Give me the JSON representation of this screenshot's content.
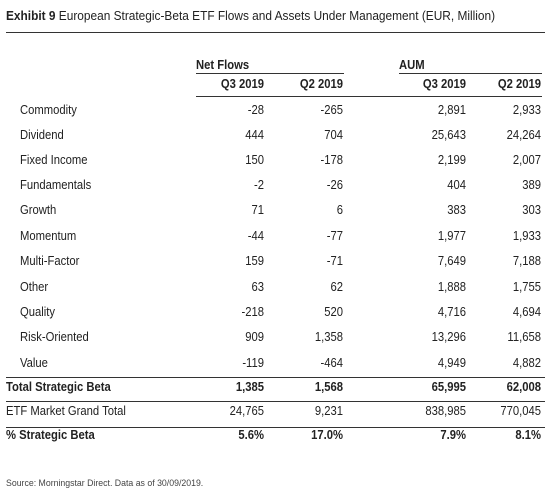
{
  "title": {
    "lead": "Exhibit 9",
    "text": "European Strategic-Beta ETF Flows and Assets Under Management (EUR, Million)"
  },
  "groups": {
    "net_flows": "Net Flows",
    "aum": "AUM"
  },
  "columns": [
    "Q3 2019",
    "Q2 2019",
    "Q3 2019",
    "Q2 2019"
  ],
  "rows": [
    {
      "label": "Commodity",
      "values": [
        "-28",
        "-265",
        "2,891",
        "2,933"
      ],
      "bold": false
    },
    {
      "label": "Dividend",
      "values": [
        "444",
        "704",
        "25,643",
        "24,264"
      ],
      "bold": false
    },
    {
      "label": "Fixed Income",
      "values": [
        "150",
        "-178",
        "2,199",
        "2,007"
      ],
      "bold": false
    },
    {
      "label": "Fundamentals",
      "values": [
        "-2",
        "-26",
        "404",
        "389"
      ],
      "bold": false
    },
    {
      "label": "Growth",
      "values": [
        "71",
        "6",
        "383",
        "303"
      ],
      "bold": false
    },
    {
      "label": "Momentum",
      "values": [
        "-44",
        "-77",
        "1,977",
        "1,933"
      ],
      "bold": false
    },
    {
      "label": "Multi-Factor",
      "values": [
        "159",
        "-71",
        "7,649",
        "7,188"
      ],
      "bold": false
    },
    {
      "label": "Other",
      "values": [
        "63",
        "62",
        "1,888",
        "1,755"
      ],
      "bold": false
    },
    {
      "label": "Quality",
      "values": [
        "-218",
        "520",
        "4,716",
        "4,694"
      ],
      "bold": false
    },
    {
      "label": "Risk-Oriented",
      "values": [
        "909",
        "1,358",
        "13,296",
        "11,658"
      ],
      "bold": false
    },
    {
      "label": "Value",
      "values": [
        "-119",
        "-464",
        "4,949",
        "4,882"
      ],
      "bold": false
    },
    {
      "label": "Total Strategic Beta",
      "values": [
        "1,385",
        "1,568",
        "65,995",
        "62,008"
      ],
      "bold": true
    },
    {
      "label": "ETF Market Grand Total",
      "values": [
        "24,765",
        "9,231",
        "838,985",
        "770,045"
      ],
      "bold": false
    },
    {
      "label": "% Strategic Beta",
      "values": [
        "5.6%",
        "17.0%",
        "7.9%",
        "8.1%"
      ],
      "bold": true
    }
  ],
  "source": "Source: Morningstar Direct. Data as of 30/09/2019."
}
